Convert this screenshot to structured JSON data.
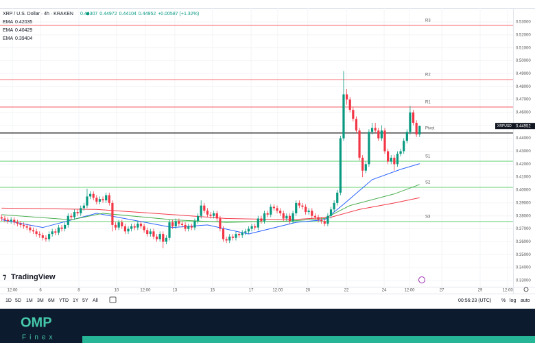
{
  "header": {
    "symbol": "XRP / U.S. Dollar · 4h · KRAKEN",
    "change": "+0.00587 (+1.32%)"
  },
  "chart_data": {
    "type": "candlestick",
    "symbol_tag": "XRPUSD",
    "up_color": "#089981",
    "down_color": "#f23645",
    "open": [
      0.379,
      0.378,
      0.377,
      0.376,
      0.377,
      0.375,
      0.374,
      0.373,
      0.372,
      0.371,
      0.369,
      0.368,
      0.366,
      0.365,
      0.363,
      0.362,
      0.366,
      0.368,
      0.367,
      0.371,
      0.37,
      0.373,
      0.38,
      0.379,
      0.383,
      0.382,
      0.386,
      0.388,
      0.395,
      0.397,
      0.394,
      0.391,
      0.393,
      0.392,
      0.396,
      0.39,
      0.373,
      0.371,
      0.375,
      0.372,
      0.368,
      0.37,
      0.372,
      0.371,
      0.374,
      0.372,
      0.369,
      0.366,
      0.368,
      0.364,
      0.362,
      0.366,
      0.36,
      0.363,
      0.375,
      0.372,
      0.376,
      0.374,
      0.373,
      0.37,
      0.372,
      0.371,
      0.376,
      0.38,
      0.388,
      0.384,
      0.381,
      0.38,
      0.382,
      0.378,
      0.37,
      0.362,
      0.361,
      0.364,
      0.363,
      0.366,
      0.365,
      0.367,
      0.368,
      0.37,
      0.372,
      0.371,
      0.378,
      0.376,
      0.382,
      0.381,
      0.387,
      0.386,
      0.384,
      0.382,
      0.378,
      0.38,
      0.376,
      0.382,
      0.39,
      0.388,
      0.387,
      0.383,
      0.384,
      0.38,
      0.379,
      0.377,
      0.376,
      0.374,
      0.38,
      0.385,
      0.39,
      0.398,
      0.44,
      0.474,
      0.47,
      0.462,
      0.455,
      0.446,
      0.425,
      0.415,
      0.42,
      0.445,
      0.448,
      0.446,
      0.44,
      0.446,
      0.43,
      0.422,
      0.425,
      0.42,
      0.428,
      0.43,
      0.438,
      0.445,
      0.46,
      0.452,
      0.44307
    ],
    "high": [
      0.381,
      0.38,
      0.379,
      0.379,
      0.379,
      0.377,
      0.376,
      0.375,
      0.374,
      0.373,
      0.371,
      0.37,
      0.368,
      0.367,
      0.365,
      0.368,
      0.37,
      0.37,
      0.373,
      0.373,
      0.375,
      0.382,
      0.382,
      0.385,
      0.385,
      0.388,
      0.39,
      0.401,
      0.399,
      0.399,
      0.396,
      0.395,
      0.395,
      0.398,
      0.398,
      0.392,
      0.375,
      0.377,
      0.377,
      0.374,
      0.372,
      0.374,
      0.374,
      0.376,
      0.376,
      0.374,
      0.371,
      0.37,
      0.37,
      0.366,
      0.368,
      0.368,
      0.365,
      0.377,
      0.377,
      0.378,
      0.378,
      0.376,
      0.375,
      0.374,
      0.374,
      0.378,
      0.382,
      0.392,
      0.39,
      0.386,
      0.383,
      0.384,
      0.384,
      0.38,
      0.372,
      0.364,
      0.366,
      0.366,
      0.368,
      0.368,
      0.369,
      0.37,
      0.372,
      0.374,
      0.374,
      0.38,
      0.38,
      0.384,
      0.384,
      0.389,
      0.389,
      0.388,
      0.386,
      0.384,
      0.382,
      0.382,
      0.384,
      0.392,
      0.392,
      0.39,
      0.389,
      0.386,
      0.386,
      0.382,
      0.381,
      0.379,
      0.378,
      0.382,
      0.387,
      0.392,
      0.4,
      0.442,
      0.492,
      0.478,
      0.472,
      0.464,
      0.457,
      0.448,
      0.427,
      0.422,
      0.447,
      0.452,
      0.452,
      0.448,
      0.45,
      0.448,
      0.432,
      0.427,
      0.427,
      0.43,
      0.432,
      0.44,
      0.447,
      0.465,
      0.462,
      0.454,
      0.44972
    ],
    "low": [
      0.376,
      0.375,
      0.374,
      0.374,
      0.373,
      0.372,
      0.371,
      0.37,
      0.369,
      0.367,
      0.366,
      0.364,
      0.363,
      0.361,
      0.36,
      0.36,
      0.364,
      0.365,
      0.365,
      0.368,
      0.368,
      0.371,
      0.377,
      0.377,
      0.38,
      0.38,
      0.384,
      0.386,
      0.393,
      0.392,
      0.389,
      0.389,
      0.39,
      0.39,
      0.388,
      0.368,
      0.369,
      0.369,
      0.37,
      0.366,
      0.366,
      0.368,
      0.369,
      0.369,
      0.37,
      0.367,
      0.364,
      0.364,
      0.362,
      0.36,
      0.36,
      0.355,
      0.358,
      0.361,
      0.37,
      0.37,
      0.372,
      0.371,
      0.368,
      0.368,
      0.369,
      0.369,
      0.374,
      0.378,
      0.382,
      0.379,
      0.378,
      0.378,
      0.376,
      0.368,
      0.36,
      0.359,
      0.359,
      0.361,
      0.361,
      0.363,
      0.363,
      0.365,
      0.366,
      0.368,
      0.369,
      0.369,
      0.374,
      0.374,
      0.379,
      0.379,
      0.384,
      0.382,
      0.38,
      0.376,
      0.376,
      0.374,
      0.374,
      0.38,
      0.386,
      0.385,
      0.381,
      0.381,
      0.378,
      0.377,
      0.375,
      0.374,
      0.372,
      0.372,
      0.378,
      0.383,
      0.388,
      0.396,
      0.438,
      0.466,
      0.46,
      0.453,
      0.444,
      0.423,
      0.41,
      0.413,
      0.418,
      0.443,
      0.444,
      0.438,
      0.438,
      0.428,
      0.42,
      0.42,
      0.415,
      0.418,
      0.426,
      0.428,
      0.436,
      0.443,
      0.45,
      0.441,
      0.44104
    ],
    "close": [
      0.378,
      0.377,
      0.376,
      0.377,
      0.375,
      0.374,
      0.373,
      0.372,
      0.371,
      0.369,
      0.368,
      0.366,
      0.365,
      0.363,
      0.362,
      0.366,
      0.368,
      0.367,
      0.371,
      0.37,
      0.373,
      0.38,
      0.379,
      0.383,
      0.382,
      0.386,
      0.388,
      0.395,
      0.397,
      0.394,
      0.391,
      0.393,
      0.392,
      0.396,
      0.39,
      0.373,
      0.371,
      0.375,
      0.372,
      0.368,
      0.37,
      0.372,
      0.371,
      0.374,
      0.372,
      0.369,
      0.366,
      0.368,
      0.364,
      0.362,
      0.366,
      0.36,
      0.363,
      0.375,
      0.372,
      0.376,
      0.374,
      0.373,
      0.37,
      0.372,
      0.371,
      0.376,
      0.38,
      0.388,
      0.384,
      0.381,
      0.38,
      0.382,
      0.378,
      0.37,
      0.362,
      0.361,
      0.364,
      0.363,
      0.366,
      0.365,
      0.367,
      0.368,
      0.37,
      0.372,
      0.371,
      0.378,
      0.376,
      0.382,
      0.381,
      0.387,
      0.386,
      0.384,
      0.382,
      0.378,
      0.38,
      0.376,
      0.382,
      0.39,
      0.388,
      0.387,
      0.383,
      0.384,
      0.38,
      0.379,
      0.377,
      0.376,
      0.374,
      0.38,
      0.385,
      0.39,
      0.398,
      0.44,
      0.474,
      0.47,
      0.462,
      0.455,
      0.446,
      0.425,
      0.415,
      0.42,
      0.445,
      0.448,
      0.446,
      0.44,
      0.446,
      0.43,
      0.422,
      0.425,
      0.42,
      0.428,
      0.43,
      0.438,
      0.445,
      0.46,
      0.452,
      0.443,
      0.44952
    ],
    "xlim": [
      -0.5,
      161.5
    ],
    "xticks": [
      {
        "value": 3.4,
        "label": "12:00"
      },
      {
        "value": 12.3,
        "label": "6"
      },
      {
        "value": 24.4,
        "label": "8"
      },
      {
        "value": 36.3,
        "label": "10"
      },
      {
        "value": 45.4,
        "label": "12:00"
      },
      {
        "value": 54.7,
        "label": "13"
      },
      {
        "value": 66.6,
        "label": "15"
      },
      {
        "value": 78.8,
        "label": "17"
      },
      {
        "value": 87.2,
        "label": "12:00"
      },
      {
        "value": 96.7,
        "label": "20"
      },
      {
        "value": 108.9,
        "label": "22"
      },
      {
        "value": 120.8,
        "label": "24"
      },
      {
        "value": 128.8,
        "label": "12:00"
      },
      {
        "value": 139,
        "label": "27"
      },
      {
        "value": 151.1,
        "label": "29"
      },
      {
        "value": 159.8,
        "label": "12:00"
      }
    ],
    "ylim": [
      0.3252,
      0.5406
    ],
    "yticks": [
      {
        "value": 0.33,
        "label": "0.33000"
      },
      {
        "value": 0.34,
        "label": "0.34000"
      },
      {
        "value": 0.35,
        "label": "0.35000"
      },
      {
        "value": 0.36,
        "label": "0.36000"
      },
      {
        "value": 0.37,
        "label": "0.37000"
      },
      {
        "value": 0.38,
        "label": "0.38000"
      },
      {
        "value": 0.39,
        "label": "0.39000"
      },
      {
        "value": 0.4,
        "label": "0.40000"
      },
      {
        "value": 0.41,
        "label": "0.41000"
      },
      {
        "value": 0.42,
        "label": "0.42000"
      },
      {
        "value": 0.43,
        "label": "0.43000"
      },
      {
        "value": 0.44,
        "label": "0.44000"
      },
      {
        "value": 0.45,
        "label": "0.45000"
      },
      {
        "value": 0.46,
        "label": "0.46000"
      },
      {
        "value": 0.47,
        "label": "0.47000"
      },
      {
        "value": 0.48,
        "label": "0.48000"
      },
      {
        "value": 0.49,
        "label": "0.49000"
      },
      {
        "value": 0.5,
        "label": "0.50000"
      },
      {
        "value": 0.51,
        "label": "0.51000"
      },
      {
        "value": 0.52,
        "label": "0.52000"
      },
      {
        "value": 0.53,
        "label": "0.53000"
      }
    ],
    "grid": true,
    "indicators": [
      {
        "name": "EMA",
        "color": "#2962ff",
        "x": [
          0,
          13,
          30,
          54,
          65,
          78,
          93,
          102,
          108,
          117,
          126,
          132
        ],
        "values": [
          0.377,
          0.371,
          0.382,
          0.371,
          0.373,
          0.366,
          0.375,
          0.377,
          0.389,
          0.408,
          0.416,
          0.42035
        ]
      },
      {
        "name": "EMA",
        "color": "#4caf50",
        "x": [
          0,
          22,
          32,
          54,
          71,
          91,
          102,
          110,
          124,
          132
        ],
        "values": [
          0.381,
          0.377,
          0.382,
          0.377,
          0.375,
          0.376,
          0.378,
          0.388,
          0.397,
          0.40429
        ]
      },
      {
        "name": "EMA",
        "color": "#f23645",
        "x": [
          0,
          30,
          54,
          71,
          91,
          104,
          113,
          124,
          132
        ],
        "values": [
          0.386,
          0.385,
          0.381,
          0.378,
          0.377,
          0.379,
          0.385,
          0.39,
          0.39404
        ]
      }
    ],
    "levels": [
      {
        "name": "R3",
        "value": 0.5273,
        "color": "#f77c80"
      },
      {
        "name": "R2",
        "value": 0.4854,
        "color": "#f77c80"
      },
      {
        "name": "R1",
        "value": 0.4642,
        "color": "#f77c80"
      },
      {
        "name": "Pivot",
        "value": 0.4441,
        "color": "#222222"
      },
      {
        "name": "S1",
        "value": 0.4223,
        "color": "#7fd88a"
      },
      {
        "name": "S2",
        "value": 0.4021,
        "color": "#7fd88a"
      },
      {
        "name": "S3",
        "value": 0.3756,
        "color": "#7fd88a"
      }
    ]
  },
  "branding": {
    "tradingview": "TradingView",
    "logo": "OMP",
    "logo_sub": "Finex"
  },
  "toolbar": {
    "ranges": [
      "1D",
      "5D",
      "1M",
      "3M",
      "6M",
      "YTD",
      "1Y",
      "5Y",
      "All"
    ],
    "time": "00:56:23 (UTC)",
    "percent": "%",
    "log": "log",
    "auto": "auto"
  }
}
